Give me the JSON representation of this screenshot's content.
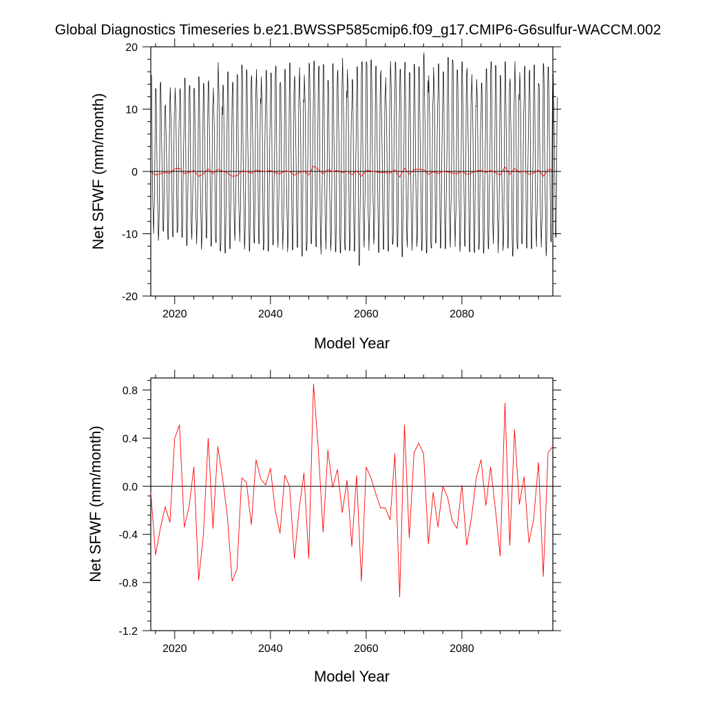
{
  "title": "Global Diagnostics Timeseries b.e21.BWSSP585cmip6.f09_g17.CMIP6-G6sulfur-WACCM.002",
  "chart_data": [
    {
      "type": "line",
      "xlabel": "Model Year",
      "ylabel": "Net SFWF (mm/month)",
      "xlim": [
        2015,
        2099
      ],
      "ylim": [
        -20,
        20
      ],
      "x_ticks": [
        2020,
        2040,
        2060,
        2080
      ],
      "x_tick_labels": [
        "2020",
        "2040",
        "2060",
        "2080"
      ],
      "y_ticks": [
        -20,
        -10,
        0,
        10,
        20
      ],
      "y_tick_labels": [
        "-20",
        "-10",
        "0",
        "10",
        "20"
      ],
      "zero_line": true,
      "grid": false,
      "series": [
        {
          "color": "#000000",
          "resolution": "monthly",
          "annual_maxima": [
            15.5,
            13.3,
            14.3,
            10.7,
            13.5,
            13.4,
            13.3,
            15.0,
            13.8,
            13.4,
            15.2,
            14.1,
            14.6,
            13.4,
            17.5,
            13.9,
            16.0,
            14.3,
            15.6,
            17.1,
            16.3,
            15.4,
            16.4,
            15.2,
            16.3,
            15.8,
            16.9,
            14.3,
            16.4,
            17.4,
            15.3,
            16.7,
            15.5,
            17.4,
            17.7,
            16.9,
            17.2,
            14.6,
            17.3,
            16.3,
            18.2,
            16.4,
            14.8,
            16.8,
            17.6,
            17.6,
            17.9,
            16.9,
            16.2,
            15.1,
            17.7,
            17.6,
            16.4,
            17.5,
            15.9,
            17.2,
            16.8,
            19.1,
            15.4,
            16.7,
            17.3,
            16.0,
            18.3,
            17.9,
            16.3,
            17.6,
            16.6,
            15.6,
            14.8,
            14.2,
            16.5,
            17.6,
            17.0,
            15.4,
            17.6,
            14.9,
            17.7,
            15.9,
            16.9,
            16.2,
            17.1,
            14.1,
            17.3,
            16.8,
            15.6
          ],
          "annual_minima": [
            -10.0,
            -11.1,
            -9.6,
            -10.9,
            -10.5,
            -9.8,
            -10.6,
            -11.9,
            -10.9,
            -11.7,
            -12.5,
            -10.7,
            -12.0,
            -11.4,
            -12.8,
            -13.1,
            -12.4,
            -11.1,
            -11.3,
            -12.5,
            -12.8,
            -11.5,
            -11.6,
            -12.6,
            -12.8,
            -11.8,
            -12.2,
            -12.5,
            -12.9,
            -12.6,
            -12.2,
            -13.6,
            -12.7,
            -11.6,
            -12.1,
            -13.3,
            -12.5,
            -12.7,
            -12.9,
            -13.1,
            -12.6,
            -12.7,
            -12.8,
            -15.1,
            -12.2,
            -12.7,
            -11.7,
            -13.0,
            -12.5,
            -12.8,
            -11.7,
            -12.1,
            -13.7,
            -12.2,
            -12.7,
            -12.1,
            -12.7,
            -13.1,
            -12.3,
            -11.5,
            -12.3,
            -12.4,
            -12.2,
            -12.1,
            -12.9,
            -12.0,
            -12.9,
            -13.0,
            -12.5,
            -13.1,
            -12.4,
            -11.6,
            -13.1,
            -12.7,
            -12.3,
            -13.6,
            -12.4,
            -11.6,
            -12.3,
            -12.4,
            -12.1,
            -12.2,
            -13.6,
            -11.3,
            -10.6
          ]
        },
        {
          "color": "#ff0000",
          "resolution": "annual",
          "values_ref": "annual_mean"
        }
      ]
    },
    {
      "type": "line",
      "xlabel": "Model Year",
      "ylabel": "Net SFWF (mm/month)",
      "xlim": [
        2015,
        2099
      ],
      "ylim": [
        -1.2,
        0.9
      ],
      "x_ticks": [
        2020,
        2040,
        2060,
        2080
      ],
      "x_tick_labels": [
        "2020",
        "2040",
        "2060",
        "2080"
      ],
      "y_ticks": [
        -1.2,
        -0.8,
        -0.4,
        0.0,
        0.4,
        0.8
      ],
      "y_tick_labels": [
        "-1.2",
        "-0.8",
        "-0.4",
        "0.0",
        "0.4",
        "0.8"
      ],
      "zero_line": true,
      "grid": false,
      "series": [
        {
          "color": "#ff0000",
          "resolution": "annual",
          "values_ref": "annual_mean"
        }
      ]
    }
  ],
  "annual_mean": {
    "x": [
      2015,
      2016,
      2017,
      2018,
      2019,
      2020,
      2021,
      2022,
      2023,
      2024,
      2025,
      2026,
      2027,
      2028,
      2029,
      2030,
      2031,
      2032,
      2033,
      2034,
      2035,
      2036,
      2037,
      2038,
      2039,
      2040,
      2041,
      2042,
      2043,
      2044,
      2045,
      2046,
      2047,
      2048,
      2049,
      2050,
      2051,
      2052,
      2053,
      2054,
      2055,
      2056,
      2057,
      2058,
      2059,
      2060,
      2061,
      2062,
      2063,
      2064,
      2065,
      2066,
      2067,
      2068,
      2069,
      2070,
      2071,
      2072,
      2073,
      2074,
      2075,
      2076,
      2077,
      2078,
      2079,
      2080,
      2081,
      2082,
      2083,
      2084,
      2085,
      2086,
      2087,
      2088,
      2089,
      2090,
      2091,
      2092,
      2093,
      2094,
      2095,
      2096,
      2097,
      2098,
      2099
    ],
    "y": [
      -0.05,
      -0.57,
      -0.35,
      -0.17,
      -0.3,
      0.4,
      0.51,
      -0.34,
      -0.17,
      0.16,
      -0.78,
      -0.4,
      0.4,
      -0.35,
      0.33,
      0.07,
      -0.25,
      -0.79,
      -0.69,
      0.07,
      0.03,
      -0.32,
      0.22,
      0.06,
      0.01,
      0.15,
      -0.2,
      -0.39,
      0.09,
      0.0,
      -0.6,
      -0.19,
      0.11,
      -0.6,
      0.85,
      0.31,
      -0.38,
      0.3,
      -0.01,
      0.14,
      -0.22,
      0.05,
      -0.5,
      0.09,
      -0.79,
      0.16,
      0.07,
      -0.06,
      -0.18,
      -0.18,
      -0.28,
      0.27,
      -0.92,
      0.51,
      -0.43,
      0.28,
      0.36,
      0.27,
      -0.48,
      -0.05,
      -0.34,
      0.0,
      -0.09,
      -0.29,
      -0.35,
      0.01,
      -0.49,
      -0.26,
      0.07,
      0.22,
      -0.16,
      0.16,
      -0.19,
      -0.58,
      0.69,
      -0.49,
      0.47,
      -0.15,
      0.08,
      -0.47,
      -0.27,
      0.2,
      -0.75,
      0.28,
      0.33
    ]
  }
}
